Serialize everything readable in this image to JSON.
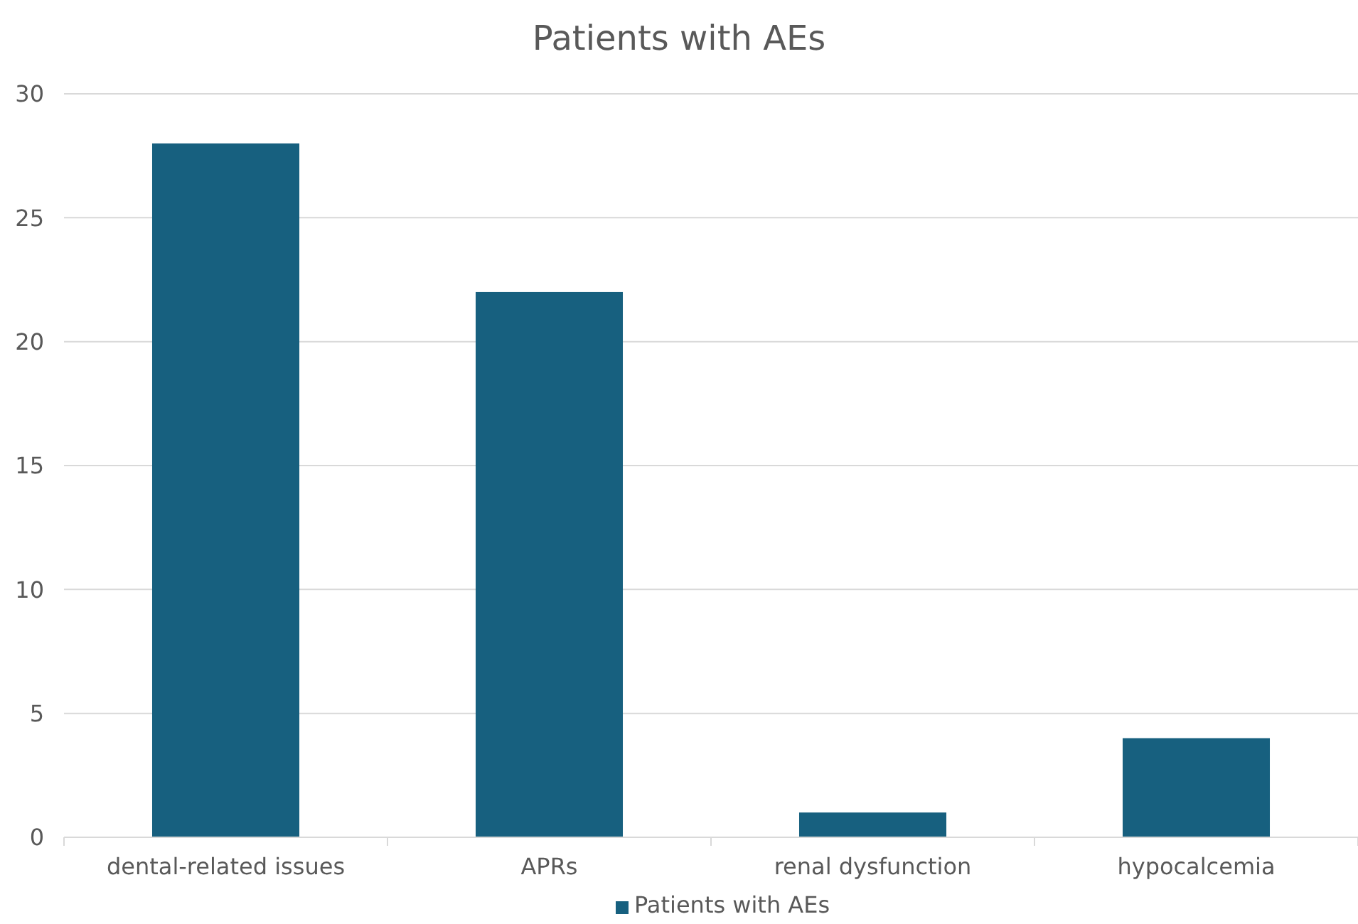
{
  "chart_data": {
    "type": "bar",
    "title": "Patients with AEs",
    "categories": [
      "dental-related issues",
      "APRs",
      "renal dysfunction",
      "hypocalcemia"
    ],
    "series": [
      {
        "name": "Patients with AEs",
        "color": "#17607f",
        "values": [
          28,
          22,
          1,
          4
        ]
      }
    ],
    "ylim": [
      0,
      30
    ],
    "yticks": [
      0,
      5,
      10,
      15,
      20,
      25,
      30
    ],
    "grid": "y",
    "legend": "bottom"
  }
}
